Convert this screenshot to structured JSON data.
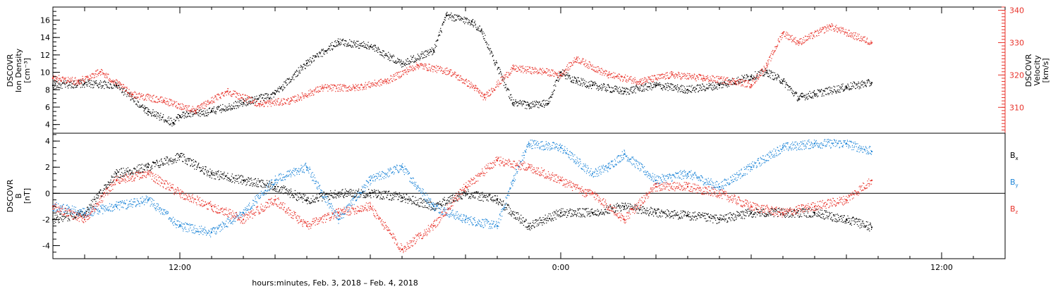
{
  "colors": {
    "black": "#000000",
    "red": "#e8322a",
    "blue": "#1f86d8"
  },
  "x_axis": {
    "caption": "hours:minutes, Feb.  3, 2018 – Feb.  4, 2018",
    "ticks": [
      {
        "hour": 12,
        "label": "12:00"
      },
      {
        "hour": 24,
        "label": "0:00"
      },
      {
        "hour": 36,
        "label": "12:00"
      }
    ]
  },
  "chart_data": [
    {
      "type": "scatter",
      "panel": "top",
      "x_unit": "hours since Feb 3 00:00",
      "xlim": [
        8,
        38
      ],
      "left_axis": {
        "label_lines": [
          "DSCOVR",
          "Ion  Density",
          "[cm⁻³]"
        ],
        "ylim": [
          3,
          17.5
        ],
        "ticks": [
          4,
          6,
          8,
          10,
          12,
          14,
          16
        ],
        "minor_step": 0.5
      },
      "right_axis": {
        "label_lines": [
          "DSCOVR",
          "Velocity",
          "[km/s]"
        ],
        "ylim": [
          302,
          341
        ],
        "ticks": [
          310,
          320,
          330,
          340
        ],
        "minor_step": 1
      },
      "series": [
        {
          "key": "density",
          "axis": "left",
          "color": "black",
          "x": [
            8,
            9,
            10,
            10.9,
            11,
            11.8,
            12,
            13,
            14,
            15,
            16,
            17,
            18,
            19,
            20,
            20.4,
            21.2,
            21.5,
            22.5,
            23,
            23.6,
            24,
            24.5,
            25,
            26,
            27,
            28,
            29,
            30,
            30.5,
            31,
            31.5,
            31.6,
            32,
            33,
            33.8
          ],
          "y": [
            8.5,
            8.7,
            8.5,
            5.8,
            5.5,
            4.2,
            5.0,
            5.5,
            6.5,
            7.5,
            11,
            13.5,
            13,
            11,
            12.5,
            16.5,
            15.8,
            14.8,
            6.5,
            6.2,
            6.4,
            10,
            9,
            8.5,
            7.8,
            8.5,
            8.0,
            8.5,
            9.5,
            10,
            9,
            7.0,
            7.2,
            7.5,
            8.3,
            8.8
          ]
        },
        {
          "key": "velocity",
          "axis": "right",
          "color": "red",
          "x": [
            8,
            8.8,
            9.5,
            10.5,
            11.5,
            12.5,
            13.5,
            14.5,
            15.5,
            16.5,
            17.5,
            18.5,
            19.5,
            20.5,
            21.3,
            21.6,
            22.5,
            23.5,
            24,
            24.5,
            25.5,
            26.5,
            27.5,
            28.5,
            29.5,
            30,
            30.5,
            31,
            31.5,
            32.5,
            33.8
          ],
          "y": [
            319,
            318,
            321,
            314,
            312,
            309,
            315,
            311,
            312,
            316,
            316,
            318,
            323,
            321,
            316,
            313,
            322,
            321,
            320,
            325,
            320,
            318,
            320,
            319,
            318,
            317,
            323,
            333,
            330,
            335,
            330
          ]
        }
      ]
    },
    {
      "type": "scatter",
      "panel": "bottom",
      "x_unit": "hours since Feb 3 00:00",
      "xlim": [
        8,
        38
      ],
      "y_axis": {
        "label_lines": [
          "DSCOVR",
          "B",
          "[nT]"
        ],
        "ylim": [
          -5,
          4.6
        ],
        "ticks": [
          -4,
          -2,
          0,
          2,
          4
        ],
        "minor_step": 0.5,
        "zero_line": true
      },
      "legend": [
        {
          "text": "B",
          "sub": "x",
          "color": "black"
        },
        {
          "text": "B",
          "sub": "y",
          "color": "blue"
        },
        {
          "text": "B",
          "sub": "z",
          "color": "red"
        }
      ],
      "series": [
        {
          "key": "bx",
          "color": "black",
          "x": [
            8,
            9,
            10,
            11,
            12,
            13,
            14,
            15,
            16,
            17,
            18,
            19,
            20,
            21,
            22,
            23,
            24,
            25,
            26,
            27,
            28,
            29,
            30,
            31,
            32,
            33,
            33.8
          ],
          "y": [
            -2.0,
            -1.5,
            1.5,
            2.0,
            2.8,
            1.5,
            1.0,
            0.5,
            -0.5,
            0.0,
            0.0,
            -0.3,
            -1.0,
            0.0,
            -0.5,
            -2.5,
            -1.5,
            -1.5,
            -1.0,
            -1.5,
            -1.7,
            -2.0,
            -1.5,
            -1.5,
            -1.5,
            -2.0,
            -2.6
          ]
        },
        {
          "key": "by",
          "color": "blue",
          "x": [
            8,
            9,
            10,
            11,
            12,
            13,
            14,
            15,
            16,
            17,
            18,
            19,
            20,
            21,
            22,
            22.5,
            23,
            24,
            25,
            25.5,
            26,
            27,
            28,
            29,
            30,
            31,
            32,
            33,
            33.8
          ],
          "y": [
            -1.0,
            -1.5,
            -1.0,
            -0.5,
            -2.5,
            -3.0,
            -1.5,
            1.0,
            2.0,
            -2.0,
            1.0,
            2.0,
            -1.0,
            -2.0,
            -2.5,
            1.0,
            3.8,
            3.5,
            1.5,
            2.0,
            3.0,
            1.0,
            1.5,
            0.5,
            2.0,
            3.5,
            3.8,
            3.8,
            3.2
          ]
        },
        {
          "key": "bz",
          "color": "red",
          "x": [
            8,
            9,
            10,
            11,
            12,
            13,
            14,
            15,
            16,
            17,
            18,
            19,
            20,
            21,
            22,
            23,
            24,
            24.8,
            25,
            26,
            27,
            28,
            29,
            30,
            31,
            32,
            33,
            33.8
          ],
          "y": [
            -1.0,
            -2.0,
            1.0,
            1.5,
            0.0,
            -1.0,
            -2.0,
            -0.5,
            -2.5,
            -1.5,
            -1.0,
            -4.3,
            -2.5,
            0.5,
            2.5,
            2.0,
            1.0,
            0.0,
            0.0,
            -2.0,
            0.5,
            0.5,
            0.0,
            -1.0,
            -1.5,
            -1.0,
            -0.5,
            1.0
          ]
        }
      ]
    }
  ]
}
